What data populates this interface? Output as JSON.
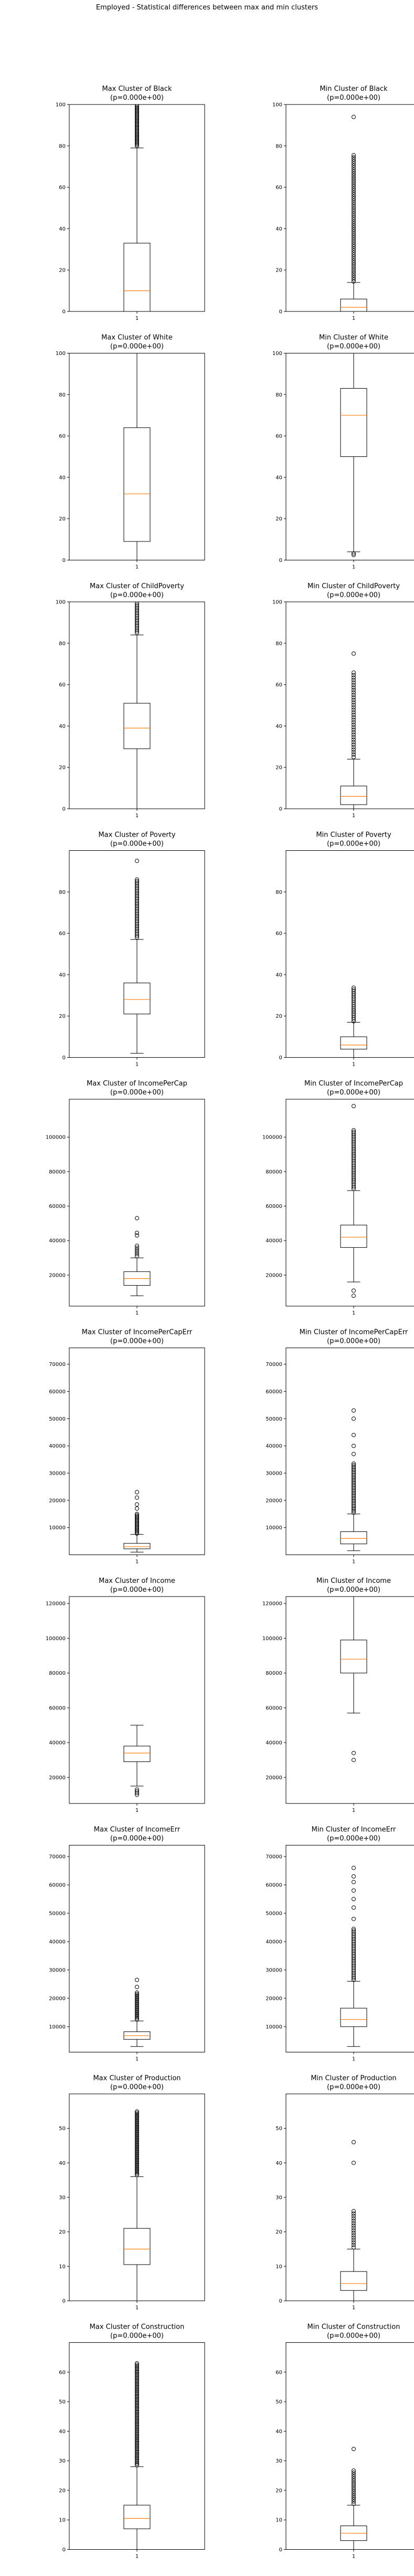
{
  "figure": {
    "suptitle": "Employed - Statistical differences between max and min clusters"
  },
  "style": {
    "box_color": "#000000",
    "median_color": "#ff7f0e",
    "flier_color": "#000000"
  },
  "chart_data": [
    {
      "type": "box",
      "title_line1": "Max Cluster of Black",
      "title_line2": "(p=0.000e+00)",
      "xticks": [
        "1"
      ],
      "ylim": [
        0,
        100
      ],
      "yticks": [
        0,
        20,
        40,
        60,
        80,
        100
      ],
      "box": {
        "whislo": 0,
        "q1": 0,
        "med": 10,
        "q3": 33,
        "whishi": 79
      },
      "fliers": {
        "from": 80,
        "to": 100,
        "step": 0.6
      }
    },
    {
      "type": "box",
      "title_line1": "Min Cluster of Black",
      "title_line2": "(p=0.000e+00)",
      "xticks": [
        "1"
      ],
      "ylim": [
        0,
        100
      ],
      "yticks": [
        0,
        20,
        40,
        60,
        80,
        100
      ],
      "box": {
        "whislo": 0,
        "q1": 0,
        "med": 2,
        "q3": 6,
        "whishi": 14
      },
      "fliers": {
        "from": 14.5,
        "to": 76,
        "step": 1.0,
        "extra": [
          94
        ]
      }
    },
    {
      "type": "box",
      "title_line1": "Max Cluster of White",
      "title_line2": "(p=0.000e+00)",
      "xticks": [
        "1"
      ],
      "ylim": [
        0,
        100
      ],
      "yticks": [
        0,
        20,
        40,
        60,
        80,
        100
      ],
      "box": {
        "whislo": 0,
        "q1": 9,
        "med": 32,
        "q3": 64,
        "whishi": 100
      },
      "fliers": {}
    },
    {
      "type": "box",
      "title_line1": "Min Cluster of White",
      "title_line2": "(p=0.000e+00)",
      "xticks": [
        "1"
      ],
      "ylim": [
        0,
        100
      ],
      "yticks": [
        0,
        20,
        40,
        60,
        80,
        100
      ],
      "box": {
        "whislo": 4,
        "q1": 50,
        "med": 70,
        "q3": 83,
        "whishi": 100
      },
      "fliers": {
        "extra": [
          2.5,
          3.2
        ]
      }
    },
    {
      "type": "box",
      "title_line1": "Max Cluster of ChildPoverty",
      "title_line2": "(p=0.000e+00)",
      "xticks": [
        "1"
      ],
      "ylim": [
        0,
        100
      ],
      "yticks": [
        0,
        20,
        40,
        60,
        80,
        100
      ],
      "box": {
        "whislo": 0,
        "q1": 29,
        "med": 39,
        "q3": 51,
        "whishi": 84
      },
      "fliers": {
        "from": 85,
        "to": 100,
        "step": 0.8
      }
    },
    {
      "type": "box",
      "title_line1": "Min Cluster of ChildPoverty",
      "title_line2": "(p=0.000e+00)",
      "xticks": [
        "1"
      ],
      "ylim": [
        0,
        100
      ],
      "yticks": [
        0,
        20,
        40,
        60,
        80,
        100
      ],
      "box": {
        "whislo": 0,
        "q1": 2,
        "med": 6,
        "q3": 11,
        "whishi": 24
      },
      "fliers": {
        "from": 25,
        "to": 66,
        "step": 1.2,
        "extra": [
          75
        ]
      }
    },
    {
      "type": "box",
      "title_line1": "Max Cluster of Poverty",
      "title_line2": "(p=0.000e+00)",
      "xticks": [
        "1"
      ],
      "ylim": [
        0,
        100
      ],
      "yticks": [
        0,
        20,
        40,
        60,
        80
      ],
      "box": {
        "whislo": 2,
        "q1": 21,
        "med": 28,
        "q3": 36,
        "whishi": 57
      },
      "fliers": {
        "from": 58,
        "to": 86,
        "step": 0.8,
        "extra": [
          95
        ]
      }
    },
    {
      "type": "box",
      "title_line1": "Min Cluster of Poverty",
      "title_line2": "(p=0.000e+00)",
      "xticks": [
        "1"
      ],
      "ylim": [
        0,
        100
      ],
      "yticks": [
        0,
        20,
        40,
        60,
        80
      ],
      "box": {
        "whislo": 0,
        "q1": 4,
        "med": 6,
        "q3": 10,
        "whishi": 17
      },
      "fliers": {
        "from": 17.5,
        "to": 34,
        "step": 0.9
      }
    },
    {
      "type": "box",
      "title_line1": "Max Cluster of IncomePerCap",
      "title_line2": "(p=0.000e+00)",
      "xticks": [
        "1"
      ],
      "ylim": [
        2000,
        122000
      ],
      "yticks": [
        20000,
        40000,
        60000,
        80000,
        100000
      ],
      "box": {
        "whislo": 8000,
        "q1": 14000,
        "med": 18000,
        "q3": 22000,
        "whishi": 30000
      },
      "fliers": {
        "from": 31000,
        "to": 37000,
        "step": 1200,
        "extra": [
          43000,
          44500,
          53000
        ]
      }
    },
    {
      "type": "box",
      "title_line1": "Min Cluster of IncomePerCap",
      "title_line2": "(p=0.000e+00)",
      "xticks": [
        "1"
      ],
      "ylim": [
        2000,
        122000
      ],
      "yticks": [
        20000,
        40000,
        60000,
        80000,
        100000
      ],
      "box": {
        "whislo": 16000,
        "q1": 36000,
        "med": 42000,
        "q3": 49000,
        "whishi": 69000
      },
      "fliers": {
        "from": 70000,
        "to": 104000,
        "step": 1000,
        "extra": [
          8000,
          11000,
          118000
        ]
      }
    },
    {
      "type": "box",
      "title_line1": "Max Cluster of IncomePerCapErr",
      "title_line2": "(p=0.000e+00)",
      "xticks": [
        "1"
      ],
      "ylim": [
        0,
        76000
      ],
      "yticks": [
        10000,
        20000,
        30000,
        40000,
        50000,
        60000,
        70000
      ],
      "box": {
        "whislo": 1000,
        "q1": 2200,
        "med": 3000,
        "q3": 4200,
        "whishi": 7500
      },
      "fliers": {
        "from": 7800,
        "to": 15000,
        "step": 450,
        "extra": [
          17000,
          18500,
          21000,
          23000
        ]
      }
    },
    {
      "type": "box",
      "title_line1": "Min Cluster of IncomePerCapErr",
      "title_line2": "(p=0.000e+00)",
      "xticks": [
        "1"
      ],
      "ylim": [
        0,
        76000
      ],
      "yticks": [
        10000,
        20000,
        30000,
        40000,
        50000,
        60000,
        70000
      ],
      "box": {
        "whislo": 1500,
        "q1": 4000,
        "med": 6000,
        "q3": 8500,
        "whishi": 15000
      },
      "fliers": {
        "from": 15500,
        "to": 34000,
        "step": 600,
        "extra": [
          37000,
          40000,
          44000,
          50000,
          53000
        ]
      }
    },
    {
      "type": "box",
      "title_line1": "Max Cluster of Income",
      "title_line2": "(p=0.000e+00)",
      "xticks": [
        "1"
      ],
      "ylim": [
        5000,
        124000
      ],
      "yticks": [
        20000,
        40000,
        60000,
        80000,
        100000,
        120000
      ],
      "box": {
        "whislo": 15000,
        "q1": 29000,
        "med": 34000,
        "q3": 38000,
        "whishi": 50000
      },
      "fliers": {
        "extra": [
          10000,
          11000,
          12000,
          13000
        ]
      }
    },
    {
      "type": "box",
      "title_line1": "Min Cluster of Income",
      "title_line2": "(p=0.000e+00)",
      "xticks": [
        "1"
      ],
      "ylim": [
        5000,
        124000
      ],
      "yticks": [
        20000,
        40000,
        60000,
        80000,
        100000,
        120000
      ],
      "box": {
        "whislo": 57000,
        "q1": 80000,
        "med": 88000,
        "q3": 99000,
        "whishi": 125000
      },
      "fliers": {
        "extra": [
          30000,
          34000
        ]
      }
    },
    {
      "type": "box",
      "title_line1": "Max Cluster of IncomeErr",
      "title_line2": "(p=0.000e+00)",
      "xticks": [
        "1"
      ],
      "ylim": [
        1000,
        74000
      ],
      "yticks": [
        10000,
        20000,
        30000,
        40000,
        50000,
        60000,
        70000
      ],
      "box": {
        "whislo": 3000,
        "q1": 5500,
        "med": 6800,
        "q3": 8200,
        "whishi": 12000
      },
      "fliers": {
        "from": 12500,
        "to": 22000,
        "step": 500,
        "extra": [
          24000,
          26500
        ]
      }
    },
    {
      "type": "box",
      "title_line1": "Min Cluster of IncomeErr",
      "title_line2": "(p=0.000e+00)",
      "xticks": [
        "1"
      ],
      "ylim": [
        1000,
        74000
      ],
      "yticks": [
        10000,
        20000,
        30000,
        40000,
        50000,
        60000,
        70000
      ],
      "box": {
        "whislo": 3000,
        "q1": 10000,
        "med": 12500,
        "q3": 16500,
        "whishi": 26000
      },
      "fliers": {
        "from": 26500,
        "to": 45000,
        "step": 600,
        "extra": [
          48000,
          52000,
          55000,
          58000,
          61000,
          63000,
          66000
        ]
      }
    },
    {
      "type": "box",
      "title_line1": "Max Cluster of Production",
      "title_line2": "(p=0.000e+00)",
      "xticks": [
        "1"
      ],
      "ylim": [
        0,
        60
      ],
      "yticks": [
        0,
        10,
        20,
        30,
        40,
        50
      ],
      "box": {
        "whislo": 0,
        "q1": 10.5,
        "med": 15,
        "q3": 21,
        "whishi": 36
      },
      "fliers": {
        "from": 36.5,
        "to": 55,
        "step": 0.4
      }
    },
    {
      "type": "box",
      "title_line1": "Min Cluster of Production",
      "title_line2": "(p=0.000e+00)",
      "xticks": [
        "1"
      ],
      "ylim": [
        0,
        60
      ],
      "yticks": [
        0,
        10,
        20,
        30,
        40,
        50
      ],
      "box": {
        "whislo": 0,
        "q1": 3,
        "med": 5,
        "q3": 8.5,
        "whishi": 15
      },
      "fliers": {
        "from": 15.5,
        "to": 26,
        "step": 0.7,
        "extra": [
          40,
          46
        ]
      }
    },
    {
      "type": "box",
      "title_line1": "Max Cluster of Construction",
      "title_line2": "(p=0.000e+00)",
      "xticks": [
        "1"
      ],
      "ylim": [
        0,
        70
      ],
      "yticks": [
        0,
        10,
        20,
        30,
        40,
        50,
        60
      ],
      "box": {
        "whislo": 0,
        "q1": 7,
        "med": 10.5,
        "q3": 15,
        "whishi": 28
      },
      "fliers": {
        "from": 28.5,
        "to": 63,
        "step": 0.5
      }
    },
    {
      "type": "box",
      "title_line1": "Min Cluster of Construction",
      "title_line2": "(p=0.000e+00)",
      "xticks": [
        "1"
      ],
      "ylim": [
        0,
        70
      ],
      "yticks": [
        0,
        10,
        20,
        30,
        40,
        50,
        60
      ],
      "box": {
        "whislo": 0,
        "q1": 3,
        "med": 5.5,
        "q3": 8,
        "whishi": 15
      },
      "fliers": {
        "from": 15.5,
        "to": 27,
        "step": 0.7,
        "extra": [
          34
        ]
      }
    }
  ]
}
